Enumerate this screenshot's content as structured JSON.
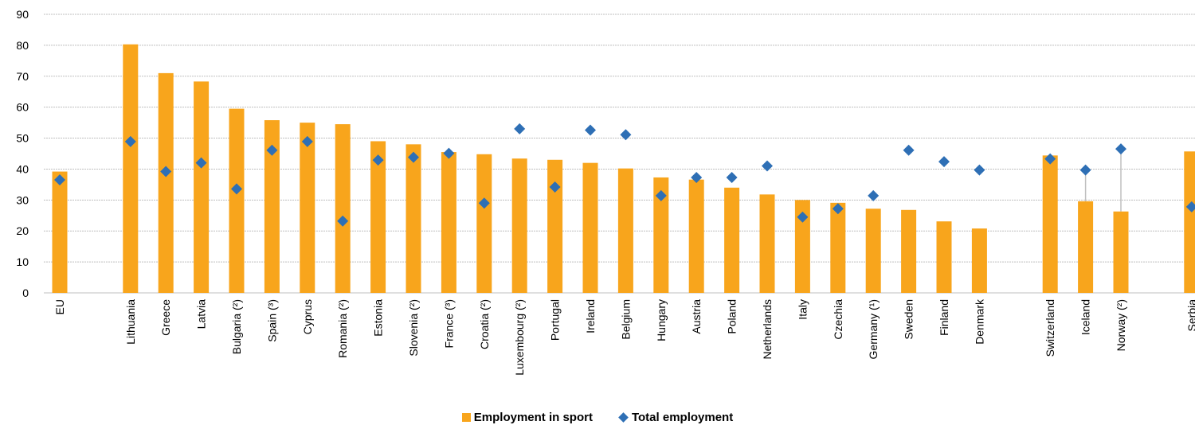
{
  "colors": {
    "bar": "#F8A51C",
    "marker": "#2E6FB5",
    "grid": "#BFBFBF",
    "connector": "#BFBFBF"
  },
  "chart_data": {
    "type": "bar",
    "ylim": [
      0,
      90
    ],
    "yticks": [
      "0",
      "10",
      "20",
      "30",
      "40",
      "50",
      "60",
      "70",
      "80",
      "90"
    ],
    "grid": "horizontal",
    "legend_position": "bottom",
    "groups": [
      [
        "EU"
      ],
      [
        "Lithuania",
        "Greece",
        "Latvia",
        "Bulgaria (²)",
        "Spain (³)",
        "Cyprus",
        "Romania (²)",
        "Estonia",
        "Slovenia (²)",
        "France (³)",
        "Croatia (²)",
        "Luxembourg (²)",
        "Portugal",
        "Ireland",
        "Belgium",
        "Hungary",
        "Austria",
        "Poland",
        "Netherlands",
        "Italy",
        "Czechia",
        "Germany (¹)",
        "Sweden",
        "Finland",
        "Denmark"
      ],
      [
        "Switzerland",
        "Iceland",
        "Norway (²)"
      ],
      [
        "Serbia"
      ]
    ],
    "categories": [
      "EU",
      "Lithuania",
      "Greece",
      "Latvia",
      "Bulgaria (²)",
      "Spain (³)",
      "Cyprus",
      "Romania (²)",
      "Estonia",
      "Slovenia (²)",
      "France (³)",
      "Croatia (²)",
      "Luxembourg (²)",
      "Portugal",
      "Ireland",
      "Belgium",
      "Hungary",
      "Austria",
      "Poland",
      "Netherlands",
      "Italy",
      "Czechia",
      "Germany (¹)",
      "Sweden",
      "Finland",
      "Denmark",
      "Switzerland",
      "Iceland",
      "Norway (²)",
      "Serbia"
    ],
    "series": [
      {
        "name": "Employment in sport",
        "type": "bar",
        "values": [
          39.2,
          80.3,
          71.0,
          68.3,
          59.5,
          55.8,
          55.0,
          54.5,
          49.0,
          48.0,
          45.5,
          44.8,
          43.4,
          43.0,
          42.0,
          40.2,
          37.3,
          36.6,
          34.0,
          31.8,
          30.0,
          29.1,
          27.2,
          26.8,
          23.1,
          20.8,
          44.4,
          29.6,
          26.3,
          45.7
        ]
      },
      {
        "name": "Total employment",
        "type": "scatter",
        "marker": "diamond",
        "values": [
          36.5,
          48.9,
          39.2,
          42.0,
          33.6,
          46.1,
          48.9,
          23.2,
          42.9,
          43.8,
          45.1,
          29.0,
          53.0,
          34.2,
          52.6,
          51.1,
          31.4,
          37.3,
          37.3,
          41.0,
          24.5,
          27.2,
          31.4,
          46.1,
          42.4,
          39.7,
          43.3,
          39.7,
          46.5,
          27.8
        ]
      }
    ],
    "connectors": [
      "Iceland",
      "Norway (²)"
    ]
  },
  "legend": {
    "bar_label": "Employment in sport",
    "marker_label": "Total employment"
  }
}
